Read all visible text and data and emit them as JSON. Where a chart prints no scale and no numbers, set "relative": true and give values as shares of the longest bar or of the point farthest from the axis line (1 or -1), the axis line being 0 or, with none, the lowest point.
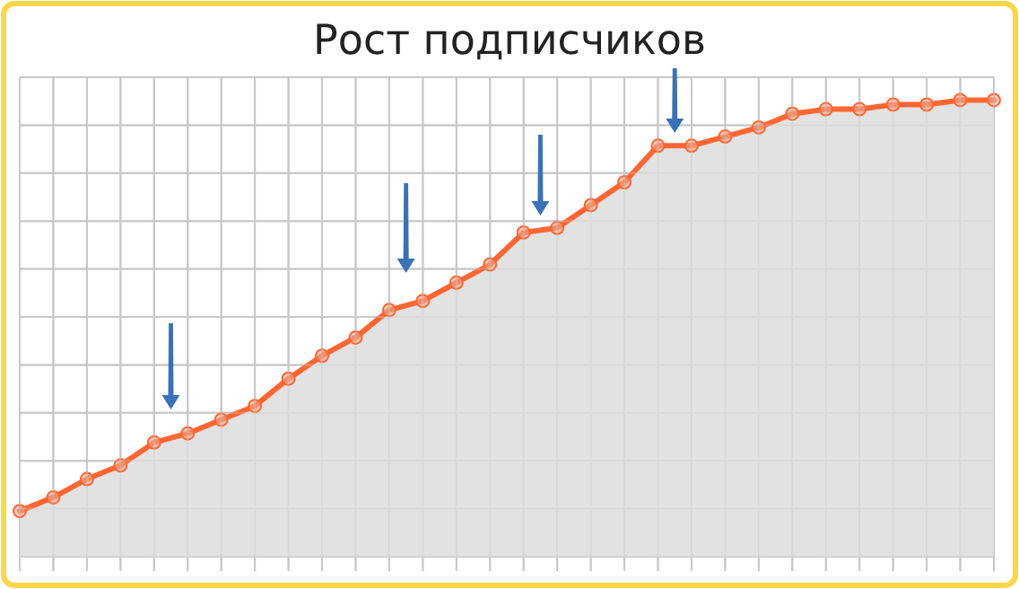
{
  "chart_data": {
    "type": "area",
    "title": "Рост подписчиков",
    "relative": true,
    "grid": true,
    "marker": "circle",
    "line_style": "solid",
    "categories": [
      null,
      null,
      null,
      null,
      null,
      null,
      null,
      null,
      null,
      null,
      null,
      null,
      null,
      null,
      null,
      null,
      null,
      null,
      null,
      null,
      null,
      null,
      null,
      null,
      null,
      null,
      null,
      null,
      null,
      null
    ],
    "series": [
      {
        "color": "#ff6633",
        "values": [
          0.1,
          0.13,
          0.17,
          0.2,
          0.25,
          0.27,
          0.3,
          0.33,
          0.39,
          0.44,
          0.48,
          0.54,
          0.56,
          0.6,
          0.64,
          0.71,
          0.72,
          0.77,
          0.82,
          0.9,
          0.9,
          0.92,
          0.94,
          0.97,
          0.98,
          0.98,
          0.99,
          0.99,
          1.0,
          1.0
        ]
      }
    ]
  }
}
